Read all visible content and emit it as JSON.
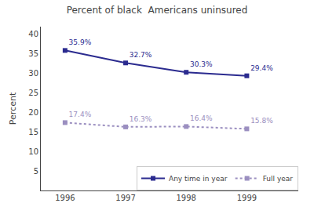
{
  "chart_data": {
    "type": "line",
    "title": "Percent of black  Americans uninsured",
    "y_label": "Percent",
    "x": [
      1996,
      1997,
      1998,
      1999
    ],
    "series": [
      {
        "name": "Any time in year",
        "color": "#2b2b8f",
        "marker": "square",
        "line_style": "solid",
        "values": [
          35.9,
          32.7,
          30.3,
          29.4
        ],
        "value_labels": [
          "35.9%",
          "32.7%",
          "30.3%",
          "29.4%"
        ]
      },
      {
        "name": "Full year",
        "color": "#9b8fc0",
        "marker": "square",
        "line_style": "dotted",
        "values": [
          17.4,
          16.3,
          16.4,
          15.8
        ],
        "value_labels": [
          "17.4%",
          "16.3%",
          "16.4%",
          "15.8%"
        ]
      }
    ],
    "xlim": [
      1995.6,
      1999.85
    ],
    "xticks": [
      1996,
      1997,
      1998,
      1999
    ],
    "ylim": [
      0,
      42
    ],
    "yticks": [
      5,
      10,
      15,
      20,
      25,
      30,
      35,
      40
    ],
    "data_labels": true,
    "grid": false,
    "legend": "lower right"
  }
}
